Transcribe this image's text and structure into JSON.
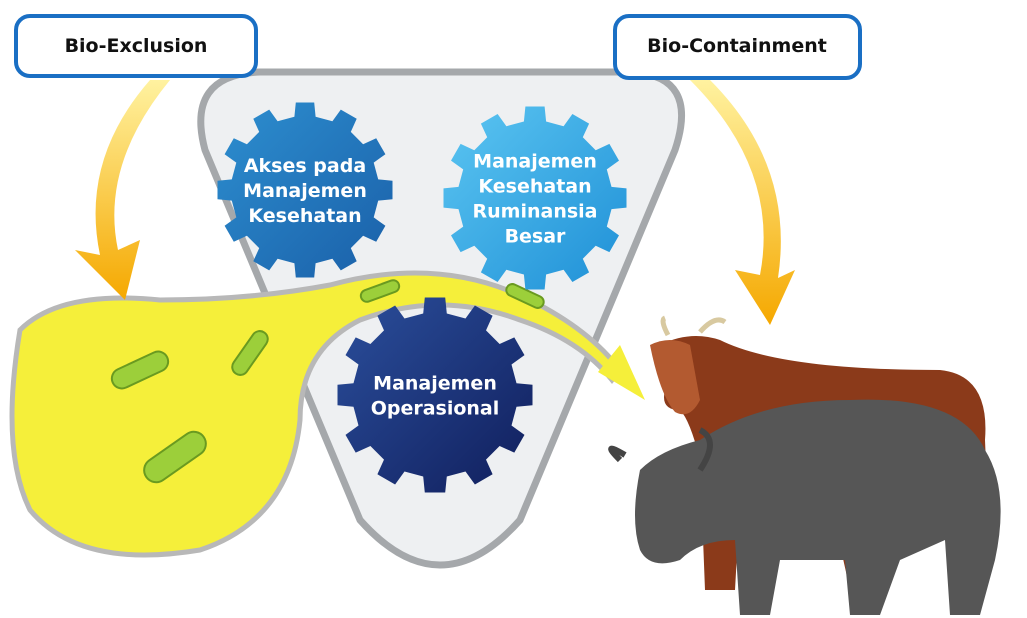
{
  "labels": {
    "left": "Bio-Exclusion",
    "right": "Bio-Containment"
  },
  "gears": [
    {
      "lines": [
        "Akses pada",
        "Manajemen",
        "Kesehatan"
      ]
    },
    {
      "lines": [
        "Manajemen",
        "Kesehatan",
        "Ruminansia",
        "Besar"
      ]
    },
    {
      "lines": [
        "Manajemen",
        "Operasional"
      ]
    }
  ]
}
